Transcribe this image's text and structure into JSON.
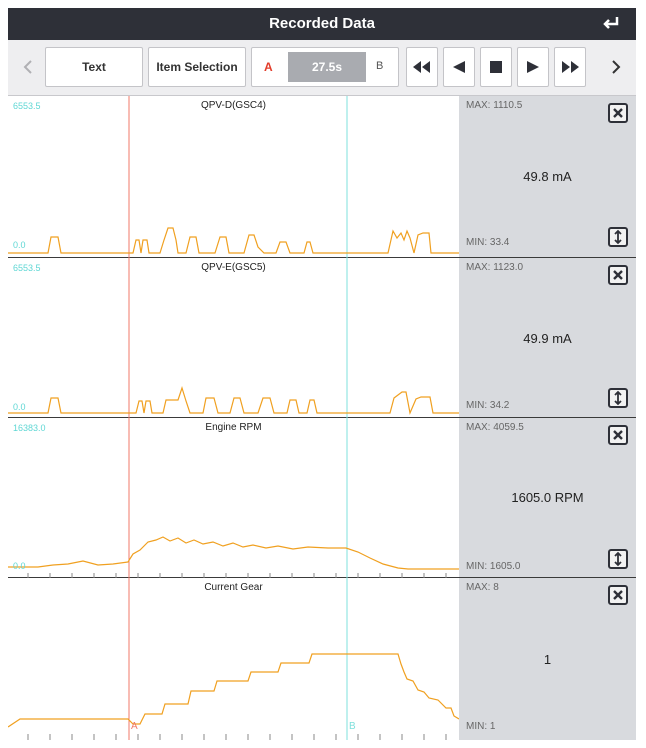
{
  "header": {
    "title": "Recorded Data",
    "back_icon": "return-arrow-icon"
  },
  "toolbar": {
    "text_label": "Text",
    "item_selection_label": "Item Selection",
    "marker_a": "A",
    "time": "27.5s",
    "marker_b": "B",
    "icons": [
      "chevron-left-icon",
      "fast-rewind-icon",
      "step-back-icon",
      "stop-icon",
      "play-icon",
      "fast-forward-icon",
      "chevron-right-icon"
    ]
  },
  "colors": {
    "trace": "#f0a020",
    "cursor_a": "#f07a68",
    "cursor_b": "#7fe0dc",
    "axis_label": "#5fd7d4"
  },
  "panels": [
    {
      "title": "QPV-D(GSC4)",
      "ymax": "6553.5",
      "ymin": "0.0",
      "max": "MAX: 1110.5",
      "min": "MIN: 33.4",
      "value": "49.8 mA"
    },
    {
      "title": "QPV-E(GSC5)",
      "ymax": "6553.5",
      "ymin": "0.0",
      "max": "MAX: 1123.0",
      "min": "MIN: 34.2",
      "value": "49.9 mA"
    },
    {
      "title": "Engine RPM",
      "ymax": "16383.0",
      "ymin": "0.0",
      "max": "MAX: 4059.5",
      "min": "MIN: 1605.0",
      "value": "1605.0 RPM"
    },
    {
      "title": "Current Gear",
      "max": "MAX: 8",
      "min": "MIN: 1",
      "value": "1",
      "cursor_a": "A",
      "cursor_b": "B"
    }
  ]
}
